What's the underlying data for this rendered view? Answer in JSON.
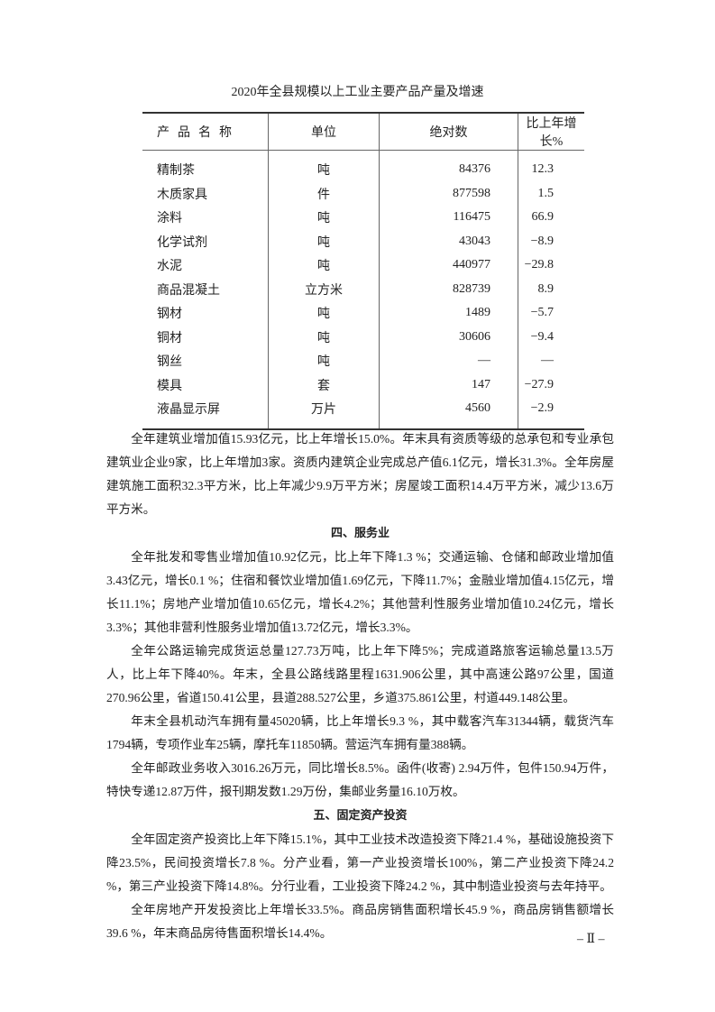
{
  "table": {
    "title": "2020年全县规模以上工业主要产品产量及增速",
    "headers": [
      "产品名称",
      "单位",
      "绝对数",
      "比上年增长%"
    ],
    "rows": [
      [
        "精制茶",
        "吨",
        "84376",
        "12.3"
      ],
      [
        "木质家具",
        "件",
        "877598",
        "1.5"
      ],
      [
        "涂料",
        "吨",
        "116475",
        "66.9"
      ],
      [
        "化学试剂",
        "吨",
        "43043",
        "−8.9"
      ],
      [
        "水泥",
        "吨",
        "440977",
        "−29.8"
      ],
      [
        "商品混凝土",
        "立方米",
        "828739",
        "8.9"
      ],
      [
        "钢材",
        "吨",
        "1489",
        "−5.7"
      ],
      [
        "铜材",
        "吨",
        "30606",
        "−9.4"
      ],
      [
        "钢丝",
        "吨",
        "—",
        "—"
      ],
      [
        "模具",
        "套",
        "147",
        "−27.9"
      ],
      [
        "液晶显示屏",
        "万片",
        "4560",
        "−2.9"
      ]
    ]
  },
  "body": {
    "p1": "全年建筑业增加值15.93亿元，比上年增长15.0%。年末具有资质等级的总承包和专业承包建筑业企业9家，比上年增加3家。资质内建筑企业完成总产值6.1亿元，增长31.3%。全年房屋建筑施工面积32.3平方米，比上年减少9.9万平方米；房屋竣工面积14.4万平方米，减少13.6万平方米。",
    "h4": "四、服务业",
    "p2": "全年批发和零售业增加值10.92亿元，比上年下降1.3 %；交通运输、仓储和邮政业增加值3.43亿元，增长0.1 %；住宿和餐饮业增加值1.69亿元，下降11.7%；金融业增加值4.15亿元，增长11.1%；房地产业增加值10.65亿元，增长4.2%；其他营利性服务业增加值10.24亿元，增长3.3%；其他非营利性服务业增加值13.72亿元，增长3.3%。",
    "p3": "全年公路运输完成货运总量127.73万吨，比上年下降5%；完成道路旅客运输总量13.5万人，比上年下降40%。年末，全县公路线路里程1631.906公里，其中高速公路97公里，国道270.96公里，省道150.41公里，县道288.527公里，乡道375.861公里，村道449.148公里。",
    "p4": "年末全县机动汽车拥有量45020辆，比上年增长9.3 %，其中载客汽车31344辆，载货汽车1794辆，专项作业车25辆，摩托车11850辆。营运汽车拥有量388辆。",
    "p5": "全年邮政业务收入3016.26万元，同比增长8.5%。函件(收寄) 2.94万件，包件150.94万件，特快专递12.87万件，报刊期发数1.29万份，集邮业务量16.10万枚。",
    "h5": "五、固定资产投资",
    "p6": "全年固定资产投资比上年下降15.1%，其中工业技术改造投资下降21.4 %，基础设施投资下降23.5%，民间投资增长7.8 %。分产业看，第一产业投资增长100%，第二产业投资下降24.2 %，第三产业投资下降14.8%。分行业看，工业投资下降24.2 %，其中制造业投资与去年持平。",
    "p7": "全年房地产开发投资比上年增长33.5%。商品房销售面积增长45.9 %，商品房销售额增长39.6 %，年末商品房待售面积增长14.4%。"
  },
  "page_number": "– Ⅱ –"
}
